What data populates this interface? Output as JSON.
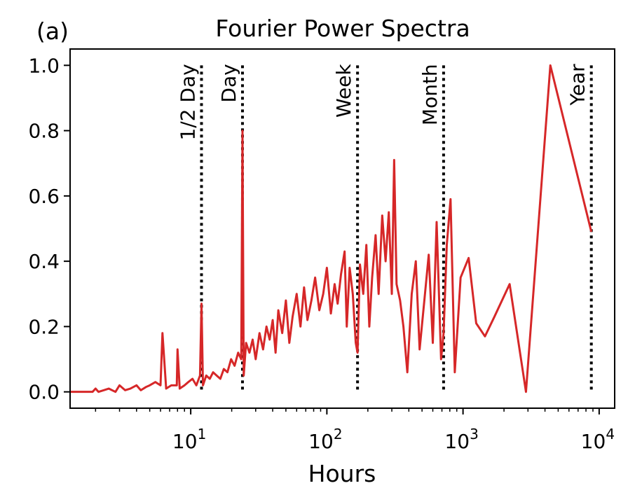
{
  "chart_data": {
    "type": "line",
    "panel_label": "(a)",
    "title": "Fourier Power Spectra",
    "xlabel": "Hours",
    "ylabel": "",
    "xscale": "log",
    "xlim": [
      1.3,
      13000
    ],
    "ylim": [
      -0.05,
      1.05
    ],
    "grid": false,
    "x_ticks": [
      {
        "base": "10",
        "exp": "1",
        "value": 10
      },
      {
        "base": "10",
        "exp": "2",
        "value": 100
      },
      {
        "base": "10",
        "exp": "3",
        "value": 1000
      },
      {
        "base": "10",
        "exp": "4",
        "value": 10000
      }
    ],
    "y_ticks": [
      {
        "label": "0.0",
        "value": 0.0
      },
      {
        "label": "0.2",
        "value": 0.2
      },
      {
        "label": "0.4",
        "value": 0.4
      },
      {
        "label": "0.6",
        "value": 0.6
      },
      {
        "label": "0.8",
        "value": 0.8
      },
      {
        "label": "1.0",
        "value": 1.0
      }
    ],
    "reference_lines": [
      {
        "label": "1/2 Day",
        "x": 12
      },
      {
        "label": "Day",
        "x": 24
      },
      {
        "label": "Week",
        "x": 168
      },
      {
        "label": "Month",
        "x": 720
      },
      {
        "label": "Year",
        "x": 8760
      }
    ],
    "series": [
      {
        "color": "#d62728",
        "x": [
          1.3,
          1.9,
          2.0,
          2.1,
          2.3,
          2.5,
          2.8,
          3.0,
          3.3,
          3.6,
          4.0,
          4.3,
          4.7,
          5.0,
          5.5,
          6.0,
          6.2,
          6.6,
          7.2,
          7.9,
          8.0,
          8.3,
          9.0,
          9.6,
          10.3,
          11.0,
          11.7,
          12.0,
          12.3,
          13.0,
          13.8,
          14.6,
          15.5,
          16.5,
          17.5,
          18.6,
          19.8,
          21.0,
          22.3,
          23.5,
          24.0,
          24.5,
          25.5,
          27.0,
          28.5,
          30.0,
          32.0,
          34.0,
          36.0,
          38.0,
          40.0,
          42.0,
          44.0,
          47.0,
          50.0,
          53.0,
          56.0,
          60.0,
          64.0,
          68.0,
          72.0,
          77.0,
          82.0,
          88.0,
          94.0,
          100.0,
          107.0,
          114.0,
          120.0,
          127.0,
          135.0,
          140.0,
          147.0,
          155.0,
          163.0,
          168.0,
          175.0,
          185.0,
          195.0,
          205.0,
          215.0,
          228.0,
          240.0,
          255.0,
          270.0,
          285.0,
          300.0,
          312.0,
          325.0,
          345.0,
          365.0,
          390.0,
          420.0,
          450.0,
          480.0,
          520.0,
          560.0,
          600.0,
          640.0,
          690.0,
          720.0,
          760.0,
          810.0,
          870.0,
          960.0,
          1100.0,
          1250.0,
          1450.0,
          1700.0,
          2200.0,
          2900.0,
          4380.0,
          8760.0
        ],
        "y": [
          0.0,
          0.0,
          0.01,
          0.0,
          0.005,
          0.01,
          0.0,
          0.02,
          0.005,
          0.01,
          0.02,
          0.005,
          0.015,
          0.02,
          0.03,
          0.02,
          0.18,
          0.01,
          0.02,
          0.02,
          0.13,
          0.01,
          0.02,
          0.03,
          0.04,
          0.02,
          0.05,
          0.27,
          0.02,
          0.05,
          0.04,
          0.06,
          0.05,
          0.04,
          0.07,
          0.06,
          0.1,
          0.08,
          0.12,
          0.1,
          0.8,
          0.05,
          0.15,
          0.12,
          0.16,
          0.1,
          0.18,
          0.13,
          0.2,
          0.16,
          0.22,
          0.12,
          0.25,
          0.18,
          0.28,
          0.15,
          0.23,
          0.3,
          0.2,
          0.32,
          0.22,
          0.28,
          0.35,
          0.25,
          0.3,
          0.38,
          0.24,
          0.33,
          0.27,
          0.36,
          0.43,
          0.2,
          0.38,
          0.3,
          0.15,
          0.12,
          0.39,
          0.3,
          0.45,
          0.2,
          0.35,
          0.48,
          0.3,
          0.54,
          0.4,
          0.55,
          0.3,
          0.71,
          0.33,
          0.28,
          0.2,
          0.06,
          0.3,
          0.4,
          0.13,
          0.28,
          0.42,
          0.15,
          0.52,
          0.1,
          0.18,
          0.45,
          0.59,
          0.06,
          0.35,
          0.41,
          0.21,
          0.17,
          0.23,
          0.33,
          0.0,
          1.0,
          0.49
        ]
      }
    ]
  }
}
